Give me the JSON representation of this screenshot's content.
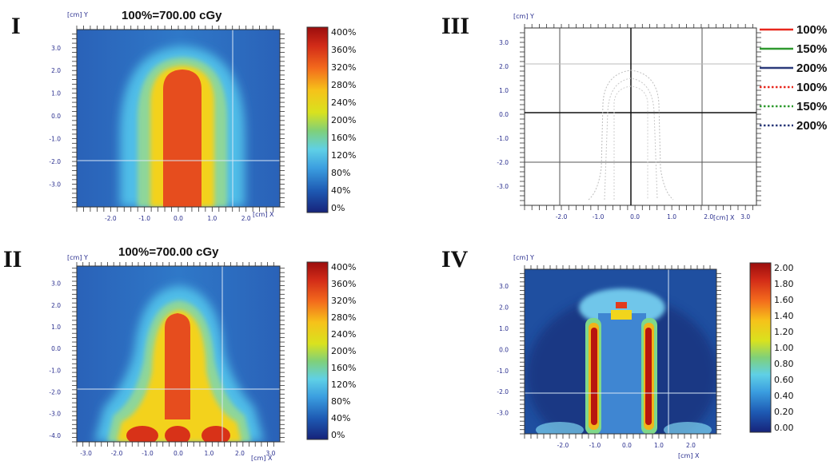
{
  "panels": [
    {
      "label": "I",
      "title": "100%=700.00 cGy",
      "axis_y_label": "[cm] Y",
      "axis_x_label": "[cm] X"
    },
    {
      "label": "II",
      "title": "100%=700.00 cGy",
      "axis_y_label": "[cm] Y",
      "axis_x_label": "[cm] X"
    },
    {
      "label": "III",
      "title": "",
      "axis_y_label": "[cm] Y",
      "axis_x_label": "[cm] X"
    },
    {
      "label": "IV",
      "title": "",
      "axis_y_label": "[cm] Y",
      "axis_x_label": "[cm] X"
    }
  ],
  "chart_data": [
    {
      "type": "heatmap",
      "title": "100%=700.00 cGy",
      "panel": "I",
      "xlabel": "[cm] X",
      "ylabel": "[cm] Y",
      "x_ticks": [
        "-2.0",
        "-1.0",
        "0.0",
        "1.0",
        "2.0"
      ],
      "y_ticks": [
        "3.0",
        "2.0",
        "1.0",
        "0.0",
        "-1.0",
        "-2.0",
        "-3.0"
      ],
      "colorbar": [
        "400%",
        "360%",
        "320%",
        "280%",
        "240%",
        "200%",
        "160%",
        "120%",
        "80%",
        "40%",
        "0%"
      ],
      "crosshair": {
        "x": 1.5,
        "y": -2.0
      }
    },
    {
      "type": "heatmap",
      "title": "100%=700.00 cGy",
      "panel": "II",
      "xlabel": "[cm] X",
      "ylabel": "[cm] Y",
      "x_ticks": [
        "-3.0",
        "-2.0",
        "-1.0",
        "0.0",
        "1.0",
        "2.0",
        "3.0"
      ],
      "y_ticks": [
        "3.0",
        "2.0",
        "1.0",
        "0.0",
        "-1.0",
        "-2.0",
        "-3.0",
        "-4.0"
      ],
      "colorbar": [
        "400%",
        "360%",
        "320%",
        "280%",
        "240%",
        "200%",
        "160%",
        "120%",
        "80%",
        "40%",
        "0%"
      ],
      "crosshair": {
        "x": 1.5,
        "y": -2.0
      }
    },
    {
      "type": "line",
      "title": "",
      "panel": "III",
      "xlabel": "[cm] X",
      "ylabel": "[cm] Y",
      "x_ticks": [
        "-2.0",
        "-1.0",
        "0.0",
        "1.0",
        "2.0",
        "3.0"
      ],
      "y_ticks": [
        "3.0",
        "2.0",
        "1.0",
        "0.0",
        "-1.0",
        "-2.0",
        "-3.0"
      ],
      "legend": [
        {
          "label": "100%",
          "color": "#e8281e",
          "style": "solid"
        },
        {
          "label": "150%",
          "color": "#2f9a2f",
          "style": "solid"
        },
        {
          "label": "200%",
          "color": "#2b3a7a",
          "style": "solid"
        },
        {
          "label": "100%",
          "color": "#e8281e",
          "style": "dotted"
        },
        {
          "label": "150%",
          "color": "#2f9a2f",
          "style": "dotted"
        },
        {
          "label": "200%",
          "color": "#2b3a7a",
          "style": "dotted"
        }
      ]
    },
    {
      "type": "heatmap",
      "title": "",
      "panel": "IV",
      "xlabel": "[cm] X",
      "ylabel": "[cm] Y",
      "x_ticks": [
        "-2.0",
        "-1.0",
        "0.0",
        "1.0",
        "2.0"
      ],
      "y_ticks": [
        "3.0",
        "2.0",
        "1.0",
        "0.0",
        "-1.0",
        "-2.0",
        "-3.0"
      ],
      "colorbar": [
        "2.00",
        "1.80",
        "1.60",
        "1.40",
        "1.20",
        "1.00",
        "0.80",
        "0.60",
        "0.40",
        "0.20",
        "0.00"
      ],
      "crosshair": {
        "x": 1.5,
        "y": -2.0
      }
    }
  ]
}
